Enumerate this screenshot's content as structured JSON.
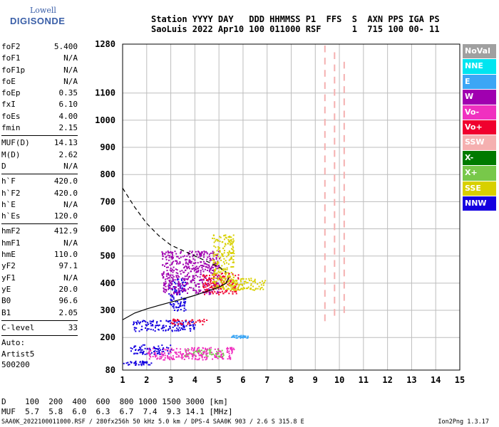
{
  "logo": {
    "line1": "Lowell",
    "line2": "DIGISONDE"
  },
  "header": {
    "line1": "Station YYYY DAY   DDD HHMMSS P1  FFS  S  AXN PPS IGA PS",
    "line2": "SaoLuis 2022 Apr10 100 011000 RSF      1  715 100 00- 11"
  },
  "params": [
    {
      "label": "foF2",
      "value": "5.400"
    },
    {
      "label": "foF1",
      "value": "N/A"
    },
    {
      "label": "foF1p",
      "value": "N/A"
    },
    {
      "label": "foE",
      "value": "N/A"
    },
    {
      "label": "foEp",
      "value": "0.35"
    },
    {
      "label": "fxI",
      "value": "6.10"
    },
    {
      "label": "foEs",
      "value": "4.00"
    },
    {
      "label": "fmin",
      "value": "2.15"
    },
    {
      "label": "MUF(D)",
      "value": "14.13"
    },
    {
      "label": "M(D)",
      "value": "2.62"
    },
    {
      "label": "D",
      "value": "N/A"
    },
    {
      "label": "h`F",
      "value": "420.0"
    },
    {
      "label": "h`F2",
      "value": "420.0"
    },
    {
      "label": "h`E",
      "value": "N/A"
    },
    {
      "label": "h`Es",
      "value": "120.0"
    },
    {
      "label": "hmF2",
      "value": "412.9"
    },
    {
      "label": "hmF1",
      "value": "N/A"
    },
    {
      "label": "hmE",
      "value": "110.0"
    },
    {
      "label": "yF2",
      "value": "97.1"
    },
    {
      "label": "yF1",
      "value": "N/A"
    },
    {
      "label": "yE",
      "value": "20.0"
    },
    {
      "label": "B0",
      "value": "96.6"
    },
    {
      "label": "B1",
      "value": "2.05"
    },
    {
      "label": "C-level",
      "value": "33"
    }
  ],
  "auto": {
    "line1": "Auto:",
    "line2": "Artist5",
    "line3": "500200"
  },
  "legend": [
    {
      "label": "NoVal",
      "color": "#a0a0a0"
    },
    {
      "label": "NNE",
      "color": "#00e5f0"
    },
    {
      "label": "E",
      "color": "#3ca6f5"
    },
    {
      "label": "W",
      "color": "#a000b0"
    },
    {
      "label": "Vo-",
      "color": "#f030c0"
    },
    {
      "label": "Vo+",
      "color": "#f0002e"
    },
    {
      "label": "SSW",
      "color": "#f5b0b0"
    },
    {
      "label": "X-",
      "color": "#007a00"
    },
    {
      "label": "X+",
      "color": "#78c84a"
    },
    {
      "label": "SSE",
      "color": "#d8d000"
    },
    {
      "label": "NNW",
      "color": "#1400e0"
    }
  ],
  "distance": {
    "line1": "D    100  200  400  600  800 1000 1500 3000 [km]",
    "line2": "MUF  5.7  5.8  6.0  6.3  6.7  7.4  9.3 14.1 [MHz]"
  },
  "footer": "SAA0K_2022100011000.RSF / 280fx256h 50 kHz 5.0 km / DPS-4 SAA0K 903 / 2.6 S 315.8 E",
  "version": "Ion2Png 1.3.17",
  "chart_data": {
    "type": "scatter",
    "xlim": [
      1,
      15
    ],
    "ylim": [
      80,
      1280
    ],
    "x_ticks": [
      1,
      2,
      3,
      4,
      5,
      6,
      7,
      8,
      9,
      10,
      11,
      12,
      13,
      14,
      15
    ],
    "y_ticks": [
      80,
      200,
      300,
      400,
      500,
      600,
      700,
      800,
      900,
      1000,
      1100,
      1280
    ],
    "grid": true,
    "profile_line": {
      "x": [
        1.0,
        1.5,
        2.0,
        2.5,
        3.0,
        3.5,
        4.0,
        4.5,
        5.0,
        5.3,
        5.4
      ],
      "y": [
        265,
        290,
        305,
        318,
        330,
        342,
        355,
        370,
        385,
        400,
        420
      ]
    },
    "extrapolated_line": {
      "x": [
        1.0,
        1.5,
        2.0,
        2.5,
        3.0,
        3.5,
        4.0,
        4.5,
        5.0,
        5.3
      ],
      "y": [
        750,
        680,
        620,
        575,
        540,
        520,
        500,
        480,
        460,
        440
      ]
    },
    "echo_clusters": [
      {
        "x": [
          1.0,
          2.2
        ],
        "y": [
          100,
          115
        ],
        "color": "#1400e0"
      },
      {
        "x": [
          1.3,
          3.0
        ],
        "y": [
          140,
          175
        ],
        "color": "#1400e0"
      },
      {
        "x": [
          1.4,
          4.0
        ],
        "y": [
          225,
          265
        ],
        "color": "#1400e0"
      },
      {
        "x": [
          2.9,
          3.6
        ],
        "y": [
          300,
          420
        ],
        "color": "#1400e0"
      },
      {
        "x": [
          2.6,
          5.0
        ],
        "y": [
          360,
          520
        ],
        "color": "#a000b0"
      },
      {
        "x": [
          4.3,
          5.8
        ],
        "y": [
          360,
          440
        ],
        "color": "#f0002e"
      },
      {
        "x": [
          4.7,
          5.6
        ],
        "y": [
          380,
          580
        ],
        "color": "#d8d000"
      },
      {
        "x": [
          3.5,
          5.2
        ],
        "y": [
          130,
          160
        ],
        "color": "#78c84a"
      },
      {
        "x": [
          2.0,
          5.6
        ],
        "y": [
          120,
          165
        ],
        "color": "#f030c0"
      },
      {
        "x": [
          3.0,
          4.5
        ],
        "y": [
          250,
          270
        ],
        "color": "#f0002e"
      },
      {
        "x": [
          5.4,
          6.9
        ],
        "y": [
          375,
          420
        ],
        "color": "#d8d000"
      },
      {
        "x": [
          5.5,
          6.2
        ],
        "y": [
          200,
          210
        ],
        "color": "#3ca6f5"
      }
    ],
    "interference_lines": [
      {
        "x": 9.4,
        "y": [
          260,
          1270
        ],
        "color": "#f5b0b0"
      },
      {
        "x": 9.8,
        "y": [
          280,
          1260
        ],
        "color": "#f5b0b0"
      },
      {
        "x": 10.2,
        "y": [
          290,
          1230
        ],
        "color": "#f5b0b0"
      }
    ]
  }
}
